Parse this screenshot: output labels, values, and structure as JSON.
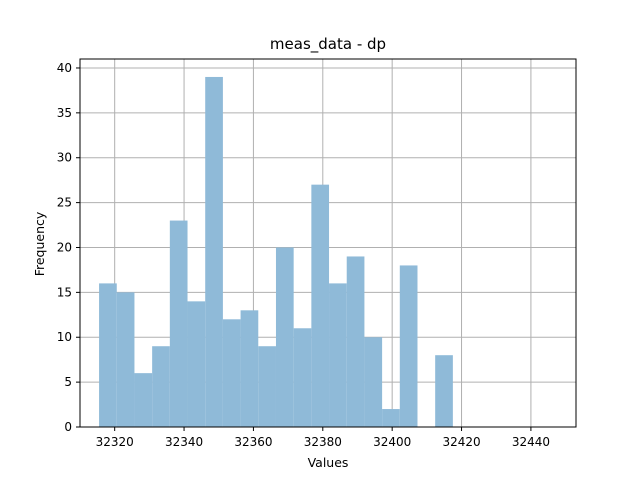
{
  "chart_data": {
    "type": "bar",
    "title": "meas_data - dp",
    "xlabel": "Values",
    "ylabel": "Frequency",
    "grid": true,
    "bar_color": "#8fbad8",
    "grid_color": "#b0b0b0",
    "xlim": [
      32310,
      32453
    ],
    "ylim": [
      0,
      41
    ],
    "xticks": [
      32320,
      32340,
      32360,
      32380,
      32400,
      32420,
      32440
    ],
    "yticks": [
      0,
      5,
      10,
      15,
      20,
      25,
      30,
      35,
      40
    ],
    "bins": [
      {
        "start": 32315.5,
        "end": 32320.6,
        "count": 16
      },
      {
        "start": 32320.6,
        "end": 32325.7,
        "count": 15
      },
      {
        "start": 32325.7,
        "end": 32330.8,
        "count": 6
      },
      {
        "start": 32330.8,
        "end": 32335.9,
        "count": 9
      },
      {
        "start": 32335.9,
        "end": 32341.0,
        "count": 23
      },
      {
        "start": 32341.0,
        "end": 32346.1,
        "count": 14
      },
      {
        "start": 32346.1,
        "end": 32351.2,
        "count": 39
      },
      {
        "start": 32351.2,
        "end": 32356.3,
        "count": 12
      },
      {
        "start": 32356.3,
        "end": 32361.4,
        "count": 13
      },
      {
        "start": 32361.4,
        "end": 32366.5,
        "count": 9
      },
      {
        "start": 32366.5,
        "end": 32371.6,
        "count": 20
      },
      {
        "start": 32371.6,
        "end": 32376.7,
        "count": 11
      },
      {
        "start": 32376.7,
        "end": 32381.8,
        "count": 27
      },
      {
        "start": 32381.8,
        "end": 32386.9,
        "count": 16
      },
      {
        "start": 32386.9,
        "end": 32392.0,
        "count": 19
      },
      {
        "start": 32392.0,
        "end": 32397.1,
        "count": 10
      },
      {
        "start": 32397.1,
        "end": 32402.2,
        "count": 2
      },
      {
        "start": 32402.2,
        "end": 32407.3,
        "count": 18
      },
      {
        "start": 32407.3,
        "end": 32412.4,
        "count": 0
      },
      {
        "start": 32412.4,
        "end": 32417.5,
        "count": 8
      }
    ]
  }
}
